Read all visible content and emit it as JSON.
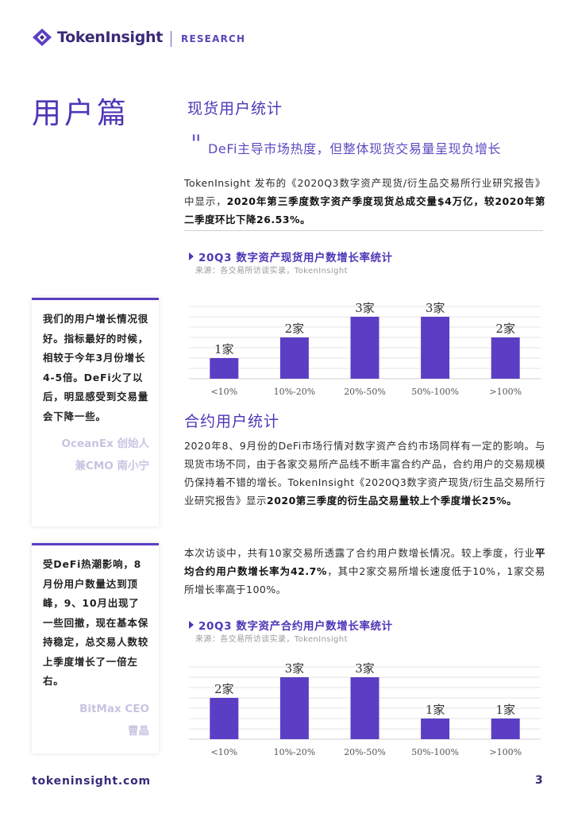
{
  "header": {
    "brand": "TokenInsight",
    "sub": "RESEARCH"
  },
  "section_title": "用户篇",
  "spot": {
    "heading": "现货用户统计",
    "quote": "DeFi主导市场热度，但整体现货交易量呈现负增长",
    "para_plain": "TokenInsight 发布的《2020Q3数字资产现货/衍生品交易所行业研究报告》中显示，",
    "para_bold": "2020年第三季度数字资产季度现货总成交量$4万亿，较2020年第二季度环比下降26.53%。"
  },
  "contract": {
    "heading": "合约用户统计",
    "para1_plain": "2020年8、9月份的DeFi市场行情对数字资产合约市场同样有一定的影响。与现货市场不同，由于各家交易所产品线不断丰富合约产品，合约用户的交易规模仍保持着不错的增长。TokenInsight《2020Q3数字资产现货/衍生品交易所行业研究报告》显示",
    "para1_bold": "2020第三季度的衍生品交易量较上个季度增长25%。",
    "para2_a": "本次访谈中，共有10家交易所透露了合约用户数增长情况。较上季度，行业",
    "para2_bold": "平均合约用户数增长率为42.7%",
    "para2_b": "，其中2家交易所增长速度低于10%，1家交易所增长率高于100%。"
  },
  "sidebar": {
    "quote1": "我们的用户增长情况很好。指标最好的时候，相较于今年3月份增长4-5倍。DeFi火了以后，明显感受到交易量会下降一些。",
    "attr1_line1": "OceanEx 创始人",
    "attr1_line2": "兼CMO 南小宁",
    "quote2": "受DeFi热潮影响，8月份用户数量达到顶峰，9、10月出现了一些回撤，现在基本保持稳定，总交易人数较上季度增长了一倍左右。",
    "attr2_line1": "BitMax CEO",
    "attr2_line2": "曹晶"
  },
  "chart_data": [
    {
      "type": "bar",
      "title": "20Q3 数字资产现货用户数增长率统计",
      "source": "来源：各交易所访谈实录，TokenInsight",
      "categories": [
        "<10%",
        "10%-20%",
        "20%-50%",
        "50%-100%",
        ">100%"
      ],
      "values": [
        1,
        2,
        3,
        3,
        2
      ],
      "data_labels": [
        "1家",
        "2家",
        "3家",
        "3家",
        "2家"
      ],
      "xlabel": "",
      "ylabel": "",
      "ylim": [
        0,
        3.5
      ],
      "grid": true,
      "bar_color": "#5b3ec4"
    },
    {
      "type": "bar",
      "title": "20Q3 数字资产合约用户数增长率统计",
      "source": "来源：各交易所访谈实录，TokenInsight",
      "categories": [
        "<10%",
        "10%-20%",
        "20%-50%",
        "50%-100%",
        ">100%"
      ],
      "values": [
        2,
        3,
        3,
        1,
        1
      ],
      "data_labels": [
        "2家",
        "3家",
        "3家",
        "1家",
        "1家"
      ],
      "xlabel": "",
      "ylabel": "",
      "ylim": [
        0,
        3.5
      ],
      "grid": true,
      "bar_color": "#5b3ec4"
    }
  ],
  "footer": {
    "url": "tokeninsight.com",
    "page": "3"
  },
  "colors": {
    "accent": "#4f36b6",
    "bar": "#5b3ec4"
  }
}
